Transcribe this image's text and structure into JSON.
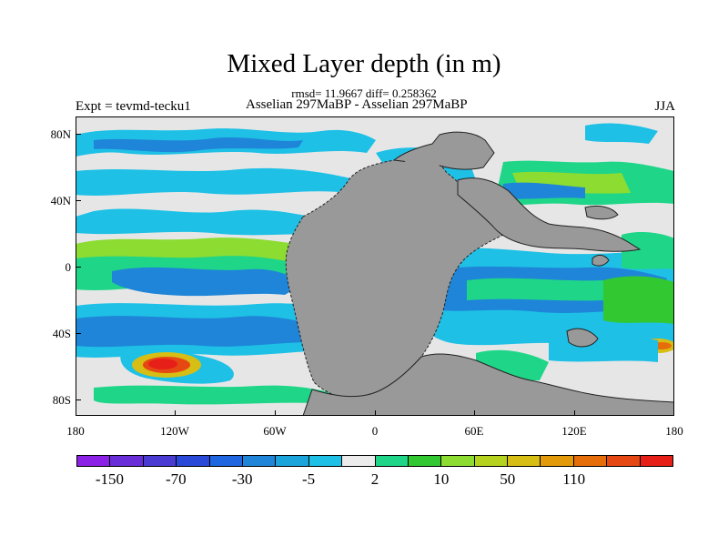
{
  "title": "Mixed Layer depth (in m)",
  "stats": "rmsd= 11.9667 diff= 0.258362",
  "experiment": "Expt = tevmd-tecku1",
  "comparison": "Asselian 297MaBP - Asselian 297MaBP",
  "season": "JJA",
  "y_axis": {
    "ticks": [
      "80N",
      "40N",
      "0",
      "40S",
      "80S"
    ],
    "tick_values": [
      80,
      40,
      0,
      -40,
      -80
    ]
  },
  "x_axis": {
    "ticks": [
      "180",
      "120W",
      "60W",
      "0",
      "60E",
      "120E",
      "180"
    ],
    "tick_values": [
      -180,
      -120,
      -60,
      0,
      60,
      120,
      180
    ]
  },
  "colorbar": {
    "colors": [
      "#8c22e6",
      "#6a2ed8",
      "#4a3cd2",
      "#2a49d8",
      "#1f66e0",
      "#1e85d8",
      "#1ba3dc",
      "#1ec0e6",
      "#ececec",
      "#1fd688",
      "#32c832",
      "#8cdc32",
      "#b4d21e",
      "#d6be14",
      "#e29a0a",
      "#e66e0a",
      "#e64814",
      "#e62018"
    ],
    "labels": [
      "-150",
      "-70",
      "-30",
      "-5",
      "2",
      "10",
      "50",
      "110"
    ],
    "label_boundary_index": [
      1,
      3,
      5,
      7,
      9,
      11,
      13,
      15
    ]
  },
  "legend_colors": {
    "land": "#999999",
    "near_zero": "#e6e6e6",
    "blue_light": "#1ec0e6",
    "blue_mid": "#1e85d8",
    "blue_dark": "#2a49d8",
    "green": "#1fd688",
    "green_bright": "#32c832",
    "yellow_green": "#8cdc32",
    "red": "#e62018"
  }
}
